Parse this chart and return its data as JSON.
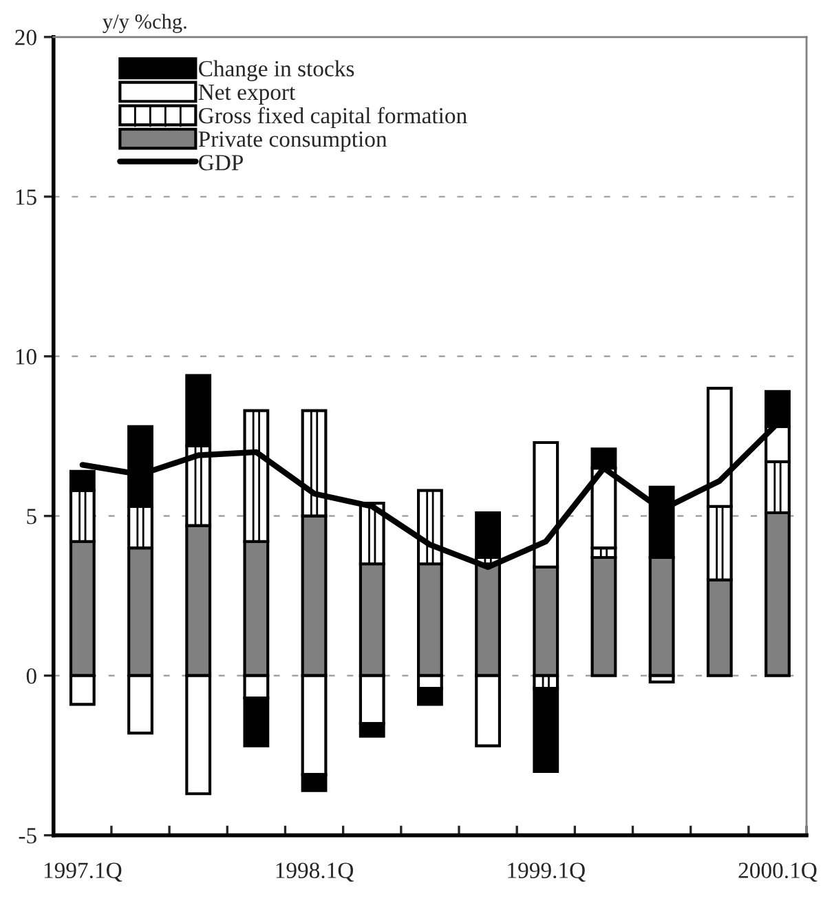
{
  "chart_data": {
    "type": "bar",
    "stacked": true,
    "ylabel": "y/y %chg.",
    "categories": [
      "1997.1Q",
      null,
      null,
      null,
      "1998.1Q",
      null,
      null,
      null,
      "1999.1Q",
      null,
      null,
      null,
      "2000.1Q"
    ],
    "series": [
      {
        "name": "Private consumption",
        "color": "#808080",
        "values": [
          4.2,
          4.0,
          4.7,
          4.2,
          5.0,
          3.5,
          3.5,
          3.5,
          3.4,
          3.7,
          3.7,
          3.0,
          5.1
        ]
      },
      {
        "name": "Gross fixed capital formation",
        "color": "#ffffff",
        "values": [
          1.6,
          1.3,
          2.5,
          4.1,
          3.3,
          1.9,
          2.3,
          0.2,
          -0.4,
          0.3,
          null,
          2.3,
          1.6
        ]
      },
      {
        "name": "Net export",
        "color": "#ffffff",
        "values": [
          -0.9,
          -1.8,
          -3.7,
          -0.7,
          -3.1,
          -1.5,
          -0.4,
          -2.2,
          3.9,
          2.5,
          -0.2,
          3.7,
          1.1
        ]
      },
      {
        "name": "Change in stocks",
        "color": "#000000",
        "values": [
          0.6,
          2.5,
          2.2,
          -1.5,
          -0.5,
          -0.4,
          -0.5,
          1.4,
          -2.6,
          0.6,
          2.2,
          null,
          1.1
        ]
      },
      {
        "name": "GDP",
        "type": "line",
        "color": "#000000",
        "values": [
          6.6,
          6.3,
          6.9,
          7.0,
          5.7,
          5.3,
          4.1,
          3.4,
          4.2,
          6.5,
          5.2,
          6.1,
          7.9
        ]
      }
    ],
    "ylim": [
      -5,
      20
    ],
    "yticks": [
      -5,
      0,
      5,
      10,
      15,
      20
    ],
    "grid": "y",
    "legend": "top left",
    "marker": "none",
    "line_style": "solid"
  }
}
